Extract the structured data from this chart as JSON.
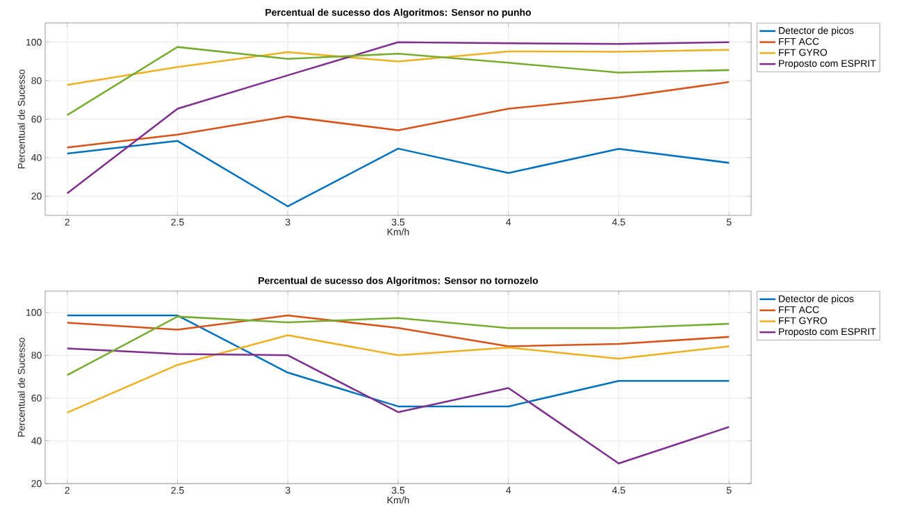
{
  "chart_data": [
    {
      "type": "line",
      "title": "Percentual de sucesso dos Algoritmos: Sensor no punho",
      "xlabel": "Km/h",
      "ylabel": "Percentual de Sucesso",
      "x": [
        2,
        2.5,
        3,
        3.5,
        4,
        4.5,
        5
      ],
      "xlim": [
        1.9,
        5.1
      ],
      "xticks": [
        2,
        2.5,
        3,
        3.5,
        4,
        4.5,
        5
      ],
      "ylim": [
        10,
        110
      ],
      "yticks": [
        20,
        40,
        60,
        80,
        100
      ],
      "grid": true,
      "legend": "right",
      "series": [
        {
          "name": "Detector de picos",
          "color": "#0072bd",
          "values": [
            42.1,
            48.7,
            14.7,
            44.7,
            32,
            44.6,
            37.3
          ]
        },
        {
          "name": "FFT ACC",
          "color": "#d95319",
          "values": [
            45.3,
            52,
            61.4,
            54.2,
            65.4,
            71.3,
            79.3
          ]
        },
        {
          "name": "FFT GYRO",
          "color": "#edb120",
          "values": [
            77.8,
            87.1,
            94.8,
            90,
            95.2,
            95,
            96
          ]
        },
        {
          "name": "Proposto com ESPRIT",
          "color": "#7e2f8e",
          "values": [
            21.5,
            65.4,
            82.8,
            100,
            99.4,
            99.1,
            100
          ]
        },
        {
          "color": "#77ac30",
          "values": [
            62.1,
            97.5,
            91.3,
            94,
            89.3,
            84.2,
            85.5
          ]
        }
      ]
    },
    {
      "type": "line",
      "title": "Percentual de sucesso dos Algoritmos: Sensor no tornozelo",
      "xlabel": "Km/h",
      "ylabel": "Percentual de Sucesso",
      "x": [
        2,
        2.5,
        3,
        3.5,
        4,
        4.5,
        5
      ],
      "xlim": [
        1.9,
        5.1
      ],
      "xticks": [
        2,
        2.5,
        3,
        3.5,
        4,
        4.5,
        5
      ],
      "ylim": [
        20,
        110
      ],
      "yticks": [
        20,
        40,
        60,
        80,
        100
      ],
      "grid": true,
      "legend": "right",
      "series": [
        {
          "name": "Detector de picos",
          "color": "#0072bd",
          "values": [
            98.6,
            98.6,
            71.9,
            56.1,
            56.1,
            68,
            68
          ]
        },
        {
          "name": "FFT ACC",
          "color": "#d95319",
          "values": [
            95.2,
            92,
            98.6,
            92.8,
            84.2,
            85.3,
            88.6
          ]
        },
        {
          "name": "FFT GYRO",
          "color": "#edb120",
          "values": [
            53.2,
            75.5,
            89.4,
            80,
            83.6,
            78.4,
            84.2
          ]
        },
        {
          "name": "Proposto com ESPRIT",
          "color": "#7e2f8e",
          "values": [
            83.2,
            80.6,
            80,
            53.4,
            64.7,
            29.4,
            46.5
          ]
        },
        {
          "color": "#77ac30",
          "values": [
            70.7,
            98.1,
            95.4,
            97.4,
            92.7,
            92.7,
            94.7
          ]
        }
      ]
    }
  ]
}
